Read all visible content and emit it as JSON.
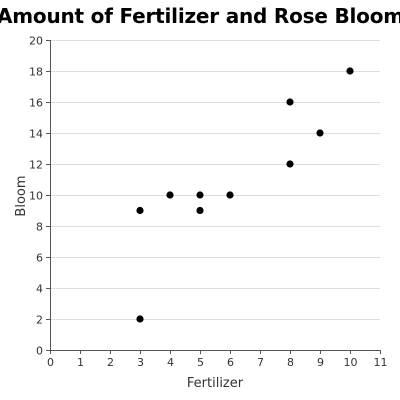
{
  "chart_data": {
    "type": "scatter",
    "title": "Amount of Fertilizer and Rose Blooms",
    "xlabel": "Fertilizer",
    "ylabel": "Bloom",
    "xlim": [
      0,
      11
    ],
    "ylim": [
      0,
      20
    ],
    "xticks": [
      0,
      1,
      2,
      3,
      4,
      5,
      6,
      7,
      8,
      9,
      10,
      11
    ],
    "yticks": [
      0,
      2,
      4,
      6,
      8,
      10,
      12,
      14,
      16,
      18,
      20
    ],
    "grid": true,
    "points": [
      {
        "x": 3,
        "y": 9
      },
      {
        "x": 3,
        "y": 2
      },
      {
        "x": 4,
        "y": 10
      },
      {
        "x": 5,
        "y": 10
      },
      {
        "x": 5,
        "y": 9
      },
      {
        "x": 6,
        "y": 10
      },
      {
        "x": 8,
        "y": 16
      },
      {
        "x": 8,
        "y": 12
      },
      {
        "x": 9,
        "y": 14
      },
      {
        "x": 10,
        "y": 18
      }
    ],
    "colors": {
      "point": "#000000",
      "grid": "#dddddd",
      "axis": "#555555",
      "text": "#333333"
    }
  }
}
